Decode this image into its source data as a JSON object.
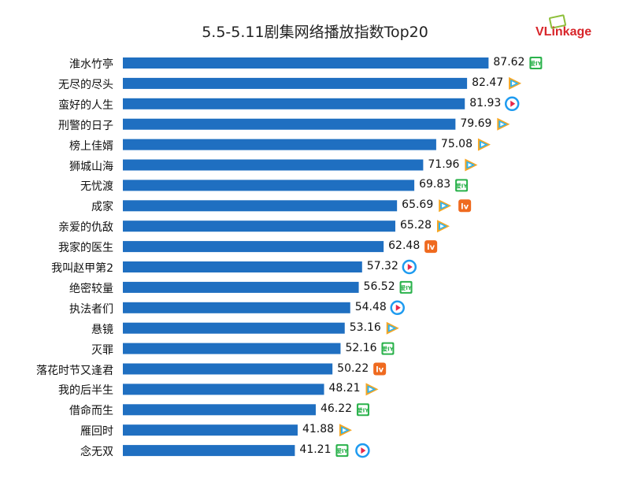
{
  "chart_data": {
    "type": "bar",
    "orientation": "horizontal",
    "title": "5.5-5.11剧集网络播放指数Top20",
    "categories": [
      "淮水竹亭",
      "无尽的尽头",
      "蛮好的人生",
      "刑警的日子",
      "榜上佳婿",
      "狮城山海",
      "无忧渡",
      "成家",
      "亲爱的仇敌",
      "我家的医生",
      "我叫赵甲第2",
      "绝密较量",
      "执法者们",
      "悬镜",
      "灭罪",
      "落花时节又逢君",
      "我的后半生",
      "借命而生",
      "雁回时",
      "念无双"
    ],
    "values": [
      87.62,
      82.47,
      81.93,
      79.69,
      75.08,
      71.96,
      69.83,
      65.69,
      65.28,
      62.48,
      57.32,
      56.52,
      54.48,
      53.16,
      52.16,
      50.22,
      48.21,
      46.22,
      41.88,
      41.21
    ],
    "platforms": [
      [
        "iqiyi"
      ],
      [
        "tencent"
      ],
      [
        "youku"
      ],
      [
        "tencent"
      ],
      [
        "tencent"
      ],
      [
        "tencent"
      ],
      [
        "iqiyi"
      ],
      [
        "tencent",
        "mgtv"
      ],
      [
        "tencent"
      ],
      [
        "mgtv"
      ],
      [
        "youku"
      ],
      [
        "iqiyi"
      ],
      [
        "youku"
      ],
      [
        "tencent"
      ],
      [
        "iqiyi"
      ],
      [
        "mgtv"
      ],
      [
        "tencent"
      ],
      [
        "iqiyi"
      ],
      [
        "tencent"
      ],
      [
        "iqiyi",
        "youku"
      ]
    ],
    "bar_color": "#1f6fc1",
    "xlim": [
      0,
      100
    ],
    "grid": false,
    "legend": "none"
  },
  "logo": {
    "text": "VLinkage",
    "color": "#d8252a"
  },
  "platform_icons": {
    "iqiyi": {
      "icon": "iqiyi-icon",
      "color": "#2bb24c",
      "glyph": "爱IY"
    },
    "tencent": {
      "icon": "tencent-video-icon",
      "color": "#2196f3"
    },
    "youku": {
      "icon": "youku-icon",
      "color": "#1e9bf0"
    },
    "mgtv": {
      "icon": "mgtv-icon",
      "color": "#ef6a1f",
      "glyph": "lv"
    }
  }
}
